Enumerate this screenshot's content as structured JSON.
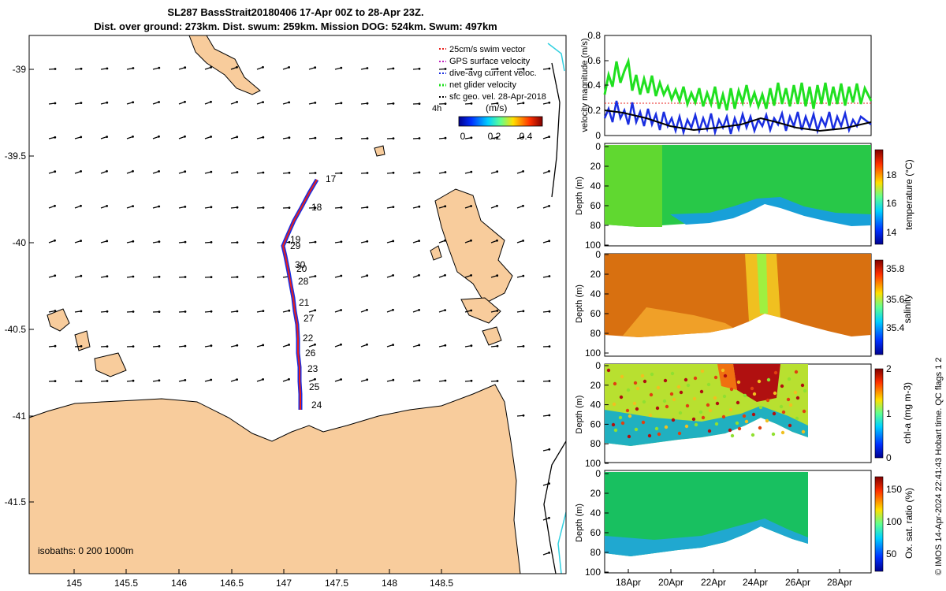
{
  "title_line1": "SL287 BassStrait20180406 17-Apr 00Z to 28-Apr 23Z.",
  "title_line2": "Dist. over ground: 273km. Dist. swum: 259km. Mission DOG: 524km. Swum: 497km",
  "map": {
    "lon_ticks": [
      "145",
      "145.5",
      "146",
      "146.5",
      "147",
      "147.5",
      "148",
      "148.5"
    ],
    "lat_ticks": [
      "-39",
      "-39.5",
      "-40",
      "-40.5",
      "-41",
      "-41.5"
    ],
    "isobaths_label": "isobaths: 0   200  1000m",
    "legend": [
      "25cm/s swim vector",
      "GPS surface velocity",
      "dive-avg current veloc.",
      "net glider velocity",
      "sfc geo. vel. 28-Apr-2018"
    ],
    "legend_aside": "4h",
    "colorbar_unit": "(m/s)",
    "colorbar_ticks": [
      "0",
      "0.2",
      "0.4"
    ],
    "day_labels": [
      {
        "day": "17"
      },
      {
        "day": "18"
      },
      {
        "day": "19"
      },
      {
        "day": "29"
      },
      {
        "day": "30"
      },
      {
        "day": "20"
      },
      {
        "day": "28"
      },
      {
        "day": "21"
      },
      {
        "day": "27"
      },
      {
        "day": "22"
      },
      {
        "day": "26"
      },
      {
        "day": "23"
      },
      {
        "day": "25"
      },
      {
        "day": "24"
      }
    ],
    "colors": {
      "land": "#f8cc9c",
      "swim_vector": "#e8201c",
      "gps": "#c020c0",
      "dive_avg": "#1a2ee0",
      "net": "#20e020",
      "sfc_geo": "#000000"
    }
  },
  "panels": {
    "velocity": {
      "ylabel": "velocity magnitude (m/s)",
      "yticks": [
        "0",
        "0.2",
        "0.4",
        "0.6",
        "0.8"
      ],
      "ylim": [
        0,
        0.8
      ]
    },
    "temperature": {
      "cblabel": "temperature (°C)",
      "cbticks": [
        "14",
        "16",
        "18"
      ]
    },
    "salinity": {
      "cblabel": "salinity",
      "cbticks": [
        "35.4",
        "35.6",
        "35.8"
      ]
    },
    "chla": {
      "cblabel": "chl-a (mg m-3)",
      "cbticks": [
        "0",
        "1",
        "2"
      ]
    },
    "oxygen": {
      "cblabel": "Ox. sat. ratio (%)",
      "cbticks": [
        "50",
        "100",
        "150"
      ]
    },
    "depth_label": "Depth (m)",
    "depth_ticks": [
      "0",
      "20",
      "40",
      "60",
      "80",
      "100"
    ],
    "x_ticks": [
      "18Apr",
      "20Apr",
      "22Apr",
      "24Apr",
      "26Apr",
      "28Apr"
    ]
  },
  "copyright": "© IMOS 14-Apr-2024 22:41:43 Hobart time. QC flags 1  2"
}
